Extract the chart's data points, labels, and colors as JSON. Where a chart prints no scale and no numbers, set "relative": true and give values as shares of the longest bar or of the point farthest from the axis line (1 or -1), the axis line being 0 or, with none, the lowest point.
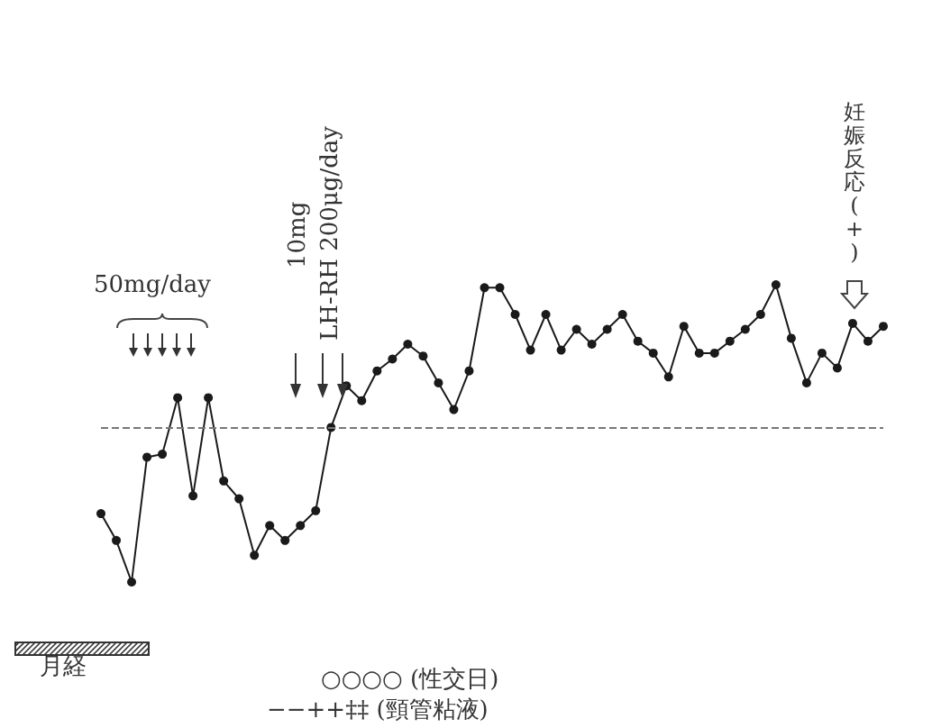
{
  "chart_data": {
    "type": "line",
    "relative": true,
    "marker": "circle",
    "line_style": "solid",
    "color": "#1a1a1a",
    "categories": [
      null,
      null,
      null,
      null,
      null,
      null,
      null,
      null,
      null,
      null,
      null,
      null,
      null,
      null,
      null,
      null,
      null,
      null,
      null,
      null,
      null,
      null,
      null,
      null,
      null,
      null,
      null,
      null,
      null,
      null,
      null,
      null,
      null,
      null,
      null,
      null,
      null,
      null,
      null,
      null,
      null,
      null,
      null,
      null,
      null,
      null,
      null,
      null,
      null,
      null,
      null,
      null
    ],
    "values": [
      0.23,
      0.14,
      0,
      0.42,
      0.43,
      0.62,
      0.29,
      0.62,
      0.34,
      0.28,
      0.09,
      0.19,
      0.14,
      0.19,
      0.24,
      0.52,
      0.66,
      0.61,
      0.71,
      0.75,
      0.8,
      0.76,
      0.67,
      0.58,
      0.71,
      0.99,
      0.99,
      0.9,
      0.78,
      0.9,
      0.78,
      0.85,
      0.8,
      0.85,
      0.9,
      0.81,
      0.77,
      0.69,
      0.86,
      0.77,
      0.77,
      0.81,
      0.85,
      0.9,
      1,
      0.82,
      0.67,
      0.77,
      0.72,
      0.87,
      0.81,
      0.86
    ],
    "ref_lines": [
      {
        "axis": "y",
        "value": 0.52,
        "line_style": "dashed",
        "color": "#777777"
      }
    ],
    "annotations": [
      "50mg/day",
      "10mg",
      "LH-RH 200μg/day",
      "妊娠反応(+)",
      "月経",
      "○○○○ (性交日)",
      "−−++‡‡ (頸管粘液)"
    ]
  }
}
